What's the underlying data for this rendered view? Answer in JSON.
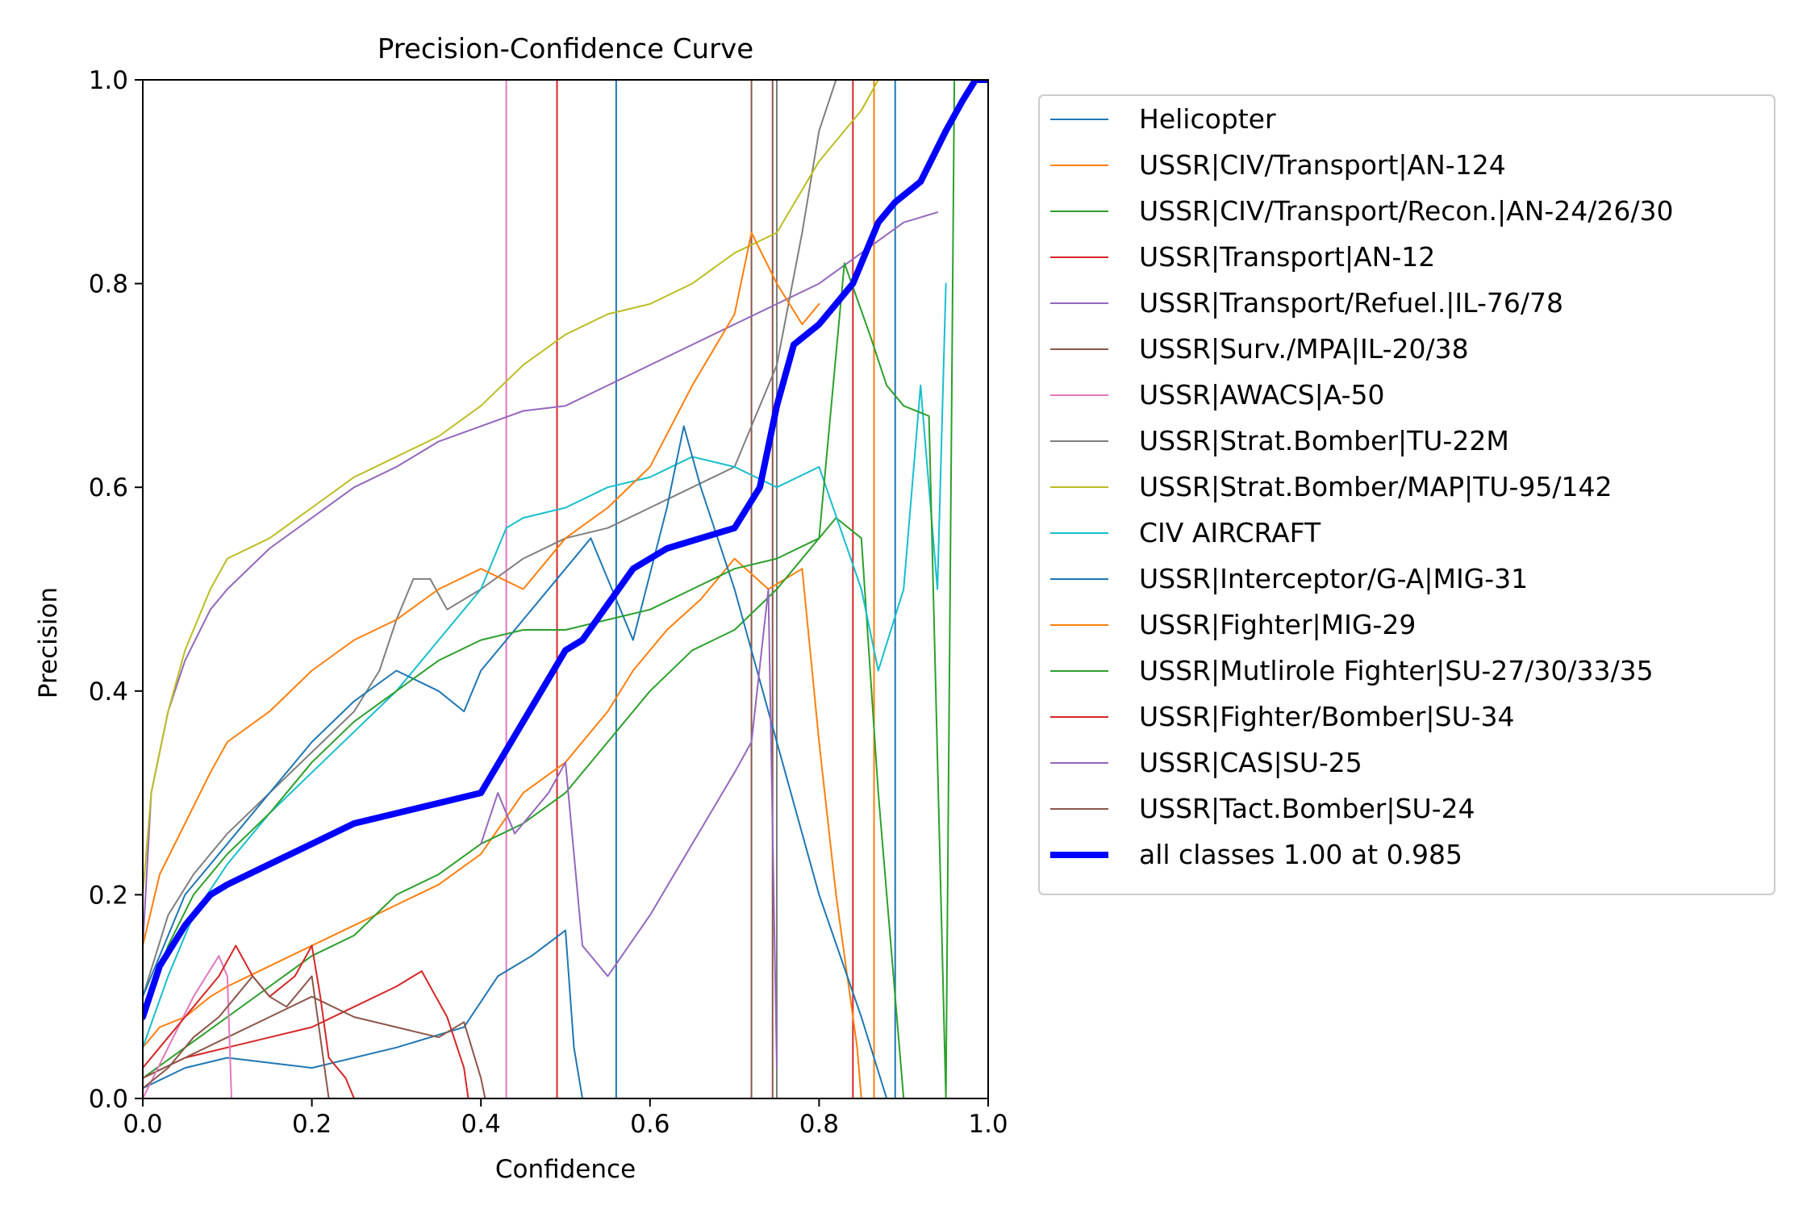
{
  "chart_data": {
    "type": "line",
    "title": "Precision-Confidence Curve",
    "xlabel": "Confidence",
    "ylabel": "Precision",
    "xlim": [
      0,
      1
    ],
    "ylim": [
      0,
      1
    ],
    "xticks": [
      {
        "value": 0.0,
        "label": "0.0"
      },
      {
        "value": 0.2,
        "label": "0.2"
      },
      {
        "value": 0.4,
        "label": "0.4"
      },
      {
        "value": 0.6,
        "label": "0.6"
      },
      {
        "value": 0.8,
        "label": "0.8"
      },
      {
        "value": 1.0,
        "label": "1.0"
      }
    ],
    "yticks": [
      {
        "value": 0.0,
        "label": "0.0"
      },
      {
        "value": 0.2,
        "label": "0.2"
      },
      {
        "value": 0.4,
        "label": "0.4"
      },
      {
        "value": 0.6,
        "label": "0.6"
      },
      {
        "value": 0.8,
        "label": "0.8"
      },
      {
        "value": 1.0,
        "label": "1.0"
      }
    ],
    "grid": false,
    "legend_position": "outside-right-top",
    "series": [
      {
        "name": "Helicopter",
        "color": "#1f77b4",
        "x": [
          0,
          0.05,
          0.1,
          0.2,
          0.3,
          0.38,
          0.42,
          0.46,
          0.5,
          0.51,
          0.52
        ],
        "y": [
          0.01,
          0.03,
          0.04,
          0.03,
          0.05,
          0.07,
          0.12,
          0.14,
          0.165,
          0.05,
          0.0
        ]
      },
      {
        "name": "USSR|CIV/Transport|AN-124",
        "color": "#ff7f0e",
        "x": [
          0,
          0.02,
          0.05,
          0.08,
          0.1,
          0.15,
          0.2,
          0.25,
          0.3,
          0.35,
          0.4,
          0.45,
          0.5,
          0.55,
          0.58,
          0.62,
          0.66,
          0.7,
          0.74,
          0.78,
          0.8,
          0.82,
          0.845,
          0.85
        ],
        "y": [
          0.05,
          0.07,
          0.08,
          0.1,
          0.11,
          0.13,
          0.15,
          0.17,
          0.19,
          0.21,
          0.24,
          0.3,
          0.33,
          0.38,
          0.42,
          0.46,
          0.49,
          0.53,
          0.5,
          0.52,
          0.35,
          0.2,
          0.05,
          0.0
        ]
      },
      {
        "name": "USSR|CIV/Transport/Recon.|AN-24/26/30",
        "color": "#2ca02c",
        "x": [
          0,
          0.05,
          0.1,
          0.15,
          0.2,
          0.25,
          0.3,
          0.35,
          0.4,
          0.45,
          0.5,
          0.55,
          0.6,
          0.65,
          0.7,
          0.75,
          0.8,
          0.82,
          0.85,
          0.87,
          0.89,
          0.9
        ],
        "y": [
          0.02,
          0.05,
          0.08,
          0.11,
          0.14,
          0.16,
          0.2,
          0.22,
          0.25,
          0.27,
          0.3,
          0.35,
          0.4,
          0.44,
          0.46,
          0.5,
          0.55,
          0.57,
          0.55,
          0.3,
          0.1,
          0.0
        ]
      },
      {
        "name": "USSR|Transport|AN-12",
        "color": "#d62728",
        "x": [
          0,
          0.05,
          0.1,
          0.15,
          0.2,
          0.25,
          0.3,
          0.33,
          0.36,
          0.38,
          0.385
        ],
        "y": [
          0.02,
          0.04,
          0.05,
          0.06,
          0.07,
          0.09,
          0.11,
          0.125,
          0.08,
          0.03,
          0.0
        ]
      },
      {
        "name": "USSR|Transport/Refuel.|IL-76/78",
        "color": "#9467bd",
        "x": [
          0,
          0.01,
          0.03,
          0.05,
          0.08,
          0.1,
          0.15,
          0.2,
          0.25,
          0.3,
          0.35,
          0.4,
          0.45,
          0.5,
          0.55,
          0.6,
          0.65,
          0.7,
          0.75,
          0.8,
          0.85,
          0.9,
          0.94
        ],
        "y": [
          0.15,
          0.3,
          0.38,
          0.43,
          0.48,
          0.5,
          0.54,
          0.57,
          0.6,
          0.62,
          0.645,
          0.66,
          0.675,
          0.68,
          0.7,
          0.72,
          0.74,
          0.76,
          0.78,
          0.8,
          0.83,
          0.86,
          0.87
        ]
      },
      {
        "name": "USSR|Surv./MPA|IL-20/38",
        "color": "#8c564b",
        "x": [
          0,
          0.05,
          0.1,
          0.15,
          0.2,
          0.25,
          0.3,
          0.35,
          0.38,
          0.4,
          0.405
        ],
        "y": [
          0.02,
          0.04,
          0.06,
          0.08,
          0.1,
          0.08,
          0.07,
          0.06,
          0.075,
          0.02,
          0.0
        ]
      },
      {
        "name": "USSR|AWACS|A-50",
        "color": "#e377c2",
        "x": [
          0.0,
          0.03,
          0.06,
          0.09,
          0.1,
          0.103,
          0.105
        ],
        "y": [
          0.0,
          0.05,
          0.1,
          0.14,
          0.12,
          0.05,
          0.0
        ]
      },
      {
        "name": "USSR|Strat.Bomber|TU-22M",
        "color": "#7f7f7f",
        "x": [
          0,
          0.03,
          0.06,
          0.1,
          0.15,
          0.2,
          0.25,
          0.28,
          0.3,
          0.32,
          0.34,
          0.36,
          0.4,
          0.45,
          0.5,
          0.55,
          0.6,
          0.65,
          0.7,
          0.75,
          0.78,
          0.8,
          0.82
        ],
        "y": [
          0.1,
          0.18,
          0.22,
          0.26,
          0.3,
          0.34,
          0.38,
          0.42,
          0.47,
          0.51,
          0.51,
          0.48,
          0.5,
          0.53,
          0.55,
          0.56,
          0.58,
          0.6,
          0.62,
          0.72,
          0.85,
          0.95,
          1.0
        ]
      },
      {
        "name": "USSR|Strat.Bomber/MAP|TU-95/142",
        "color": "#bcbd22",
        "x": [
          0,
          0.01,
          0.03,
          0.05,
          0.08,
          0.1,
          0.15,
          0.2,
          0.25,
          0.3,
          0.35,
          0.4,
          0.45,
          0.5,
          0.55,
          0.6,
          0.65,
          0.7,
          0.75,
          0.8,
          0.85,
          0.87
        ],
        "y": [
          0.2,
          0.3,
          0.38,
          0.44,
          0.5,
          0.53,
          0.55,
          0.58,
          0.61,
          0.63,
          0.65,
          0.68,
          0.72,
          0.75,
          0.77,
          0.78,
          0.8,
          0.83,
          0.85,
          0.92,
          0.97,
          1.0
        ]
      },
      {
        "name": "CIV AIRCRAFT",
        "color": "#17becf",
        "x": [
          0,
          0.03,
          0.06,
          0.1,
          0.15,
          0.2,
          0.25,
          0.3,
          0.35,
          0.4,
          0.43,
          0.45,
          0.5,
          0.55,
          0.6,
          0.65,
          0.7,
          0.75,
          0.8,
          0.85,
          0.87,
          0.9,
          0.92,
          0.93,
          0.94,
          0.95
        ],
        "y": [
          0.05,
          0.12,
          0.18,
          0.23,
          0.28,
          0.32,
          0.36,
          0.4,
          0.45,
          0.5,
          0.56,
          0.57,
          0.58,
          0.6,
          0.61,
          0.63,
          0.62,
          0.6,
          0.62,
          0.5,
          0.42,
          0.5,
          0.7,
          0.6,
          0.5,
          0.8
        ]
      },
      {
        "name": "USSR|Interceptor/G-A|MIG-31",
        "color": "#1f77b4",
        "x": [
          0,
          0.05,
          0.1,
          0.15,
          0.2,
          0.25,
          0.3,
          0.35,
          0.38,
          0.4,
          0.45,
          0.5,
          0.53,
          0.58,
          0.62,
          0.64,
          0.66,
          0.7,
          0.75,
          0.8,
          0.85,
          0.88
        ],
        "y": [
          0.1,
          0.2,
          0.25,
          0.3,
          0.35,
          0.39,
          0.42,
          0.4,
          0.38,
          0.42,
          0.47,
          0.52,
          0.55,
          0.45,
          0.58,
          0.66,
          0.6,
          0.5,
          0.35,
          0.2,
          0.08,
          0.0
        ]
      },
      {
        "name": "USSR|Fighter|MIG-29",
        "color": "#ff7f0e",
        "x": [
          0,
          0.02,
          0.05,
          0.08,
          0.1,
          0.15,
          0.2,
          0.25,
          0.3,
          0.35,
          0.4,
          0.45,
          0.5,
          0.55,
          0.6,
          0.65,
          0.7,
          0.72,
          0.75,
          0.78,
          0.8
        ],
        "y": [
          0.15,
          0.22,
          0.27,
          0.32,
          0.35,
          0.38,
          0.42,
          0.45,
          0.47,
          0.5,
          0.52,
          0.5,
          0.55,
          0.58,
          0.62,
          0.7,
          0.77,
          0.85,
          0.8,
          0.76,
          0.78
        ]
      },
      {
        "name": "USSR|Mutlirole Fighter|SU-27/30/33/35",
        "color": "#2ca02c",
        "x": [
          0,
          0.03,
          0.06,
          0.1,
          0.15,
          0.2,
          0.25,
          0.3,
          0.35,
          0.4,
          0.45,
          0.5,
          0.55,
          0.6,
          0.65,
          0.7,
          0.75,
          0.8,
          0.83,
          0.86,
          0.88,
          0.9,
          0.93,
          0.95,
          0.96
        ],
        "y": [
          0.08,
          0.15,
          0.2,
          0.24,
          0.28,
          0.33,
          0.37,
          0.4,
          0.43,
          0.45,
          0.46,
          0.46,
          0.47,
          0.48,
          0.5,
          0.52,
          0.53,
          0.55,
          0.82,
          0.75,
          0.7,
          0.68,
          0.67,
          0.0,
          1.0
        ]
      },
      {
        "name": "USSR|Fighter/Bomber|SU-34",
        "color": "#d62728",
        "x": [
          0,
          0.03,
          0.06,
          0.09,
          0.11,
          0.13,
          0.15,
          0.18,
          0.2,
          0.21,
          0.22,
          0.24,
          0.25
        ],
        "y": [
          0.03,
          0.06,
          0.09,
          0.12,
          0.15,
          0.12,
          0.1,
          0.12,
          0.15,
          0.1,
          0.04,
          0.02,
          0.0
        ]
      },
      {
        "name": "USSR|CAS|SU-25",
        "color": "#9467bd",
        "x": [
          0.4,
          0.42,
          0.44,
          0.46,
          0.48,
          0.5,
          0.52,
          0.55,
          0.6,
          0.65,
          0.7,
          0.72,
          0.74,
          0.75
        ],
        "y": [
          0.25,
          0.3,
          0.26,
          0.28,
          0.3,
          0.33,
          0.15,
          0.12,
          0.18,
          0.25,
          0.32,
          0.35,
          0.5,
          0.03
        ]
      },
      {
        "name": "USSR|Tact.Bomber|SU-24",
        "color": "#8c564b",
        "x": [
          0,
          0.03,
          0.06,
          0.09,
          0.11,
          0.13,
          0.15,
          0.17,
          0.19,
          0.2,
          0.21,
          0.22
        ],
        "y": [
          0.01,
          0.03,
          0.06,
          0.08,
          0.1,
          0.12,
          0.1,
          0.09,
          0.11,
          0.12,
          0.06,
          0.0
        ]
      },
      {
        "name": "all classes 1.00 at 0.985",
        "color": "#0000ff",
        "emphasis": true,
        "x": [
          0,
          0.02,
          0.05,
          0.08,
          0.1,
          0.15,
          0.2,
          0.25,
          0.3,
          0.35,
          0.4,
          0.45,
          0.5,
          0.52,
          0.58,
          0.62,
          0.66,
          0.7,
          0.73,
          0.75,
          0.77,
          0.8,
          0.84,
          0.87,
          0.89,
          0.92,
          0.95,
          0.97,
          0.985,
          1.0
        ],
        "y": [
          0.08,
          0.13,
          0.17,
          0.2,
          0.21,
          0.23,
          0.25,
          0.27,
          0.28,
          0.29,
          0.3,
          0.37,
          0.44,
          0.45,
          0.52,
          0.54,
          0.55,
          0.56,
          0.6,
          0.68,
          0.74,
          0.76,
          0.8,
          0.86,
          0.88,
          0.9,
          0.95,
          0.98,
          1.0,
          1.0
        ]
      }
    ],
    "vertical_lines": [
      {
        "x": 0.43,
        "color": "#e377c2"
      },
      {
        "x": 0.49,
        "color": "#d62728"
      },
      {
        "x": 0.56,
        "color": "#1f77b4"
      },
      {
        "x": 0.72,
        "color": "#8c564b"
      },
      {
        "x": 0.745,
        "color": "#8c564b"
      },
      {
        "x": 0.75,
        "color": "#7f7f7f"
      },
      {
        "x": 0.84,
        "color": "#d62728"
      },
      {
        "x": 0.865,
        "color": "#ff7f0e"
      },
      {
        "x": 0.89,
        "color": "#1f77b4"
      }
    ]
  }
}
